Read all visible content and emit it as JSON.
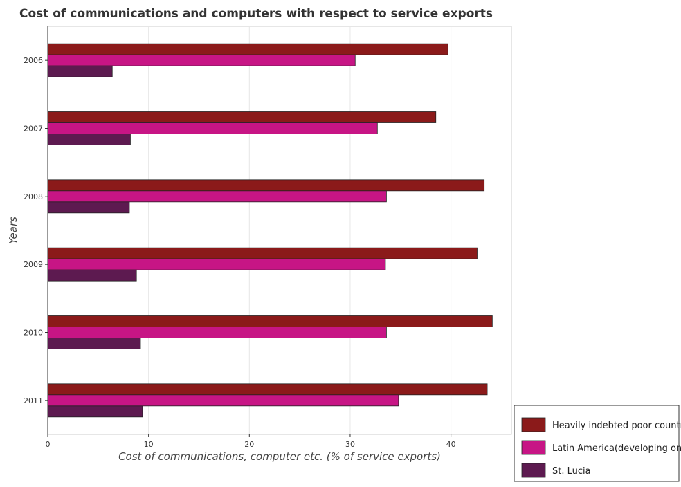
{
  "chart_data": {
    "type": "bar",
    "orientation": "horizontal",
    "title": "Cost of communications and computers with respect to service exports",
    "xlabel": "Cost of communications, computer etc. (% of service exports)",
    "ylabel": "Years",
    "categories": [
      "2006",
      "2007",
      "2008",
      "2009",
      "2010",
      "2011"
    ],
    "series": [
      {
        "name": "Heavily indebted poor countries",
        "color": "#8B1A1A",
        "values": [
          39.7,
          38.5,
          43.3,
          42.6,
          44.1,
          43.6
        ]
      },
      {
        "name": "Latin America(developing only)",
        "color": "#C71585",
        "values": [
          30.5,
          32.7,
          33.6,
          33.5,
          33.6,
          34.8
        ]
      },
      {
        "name": "St. Lucia",
        "color": "#5D1A50",
        "values": [
          6.4,
          8.2,
          8.1,
          8.8,
          9.2,
          9.4
        ]
      }
    ],
    "xlim": [
      0,
      46
    ],
    "xticks": [
      0,
      10,
      20,
      30,
      40
    ],
    "grid": true,
    "legend_position": "bottom-right"
  }
}
